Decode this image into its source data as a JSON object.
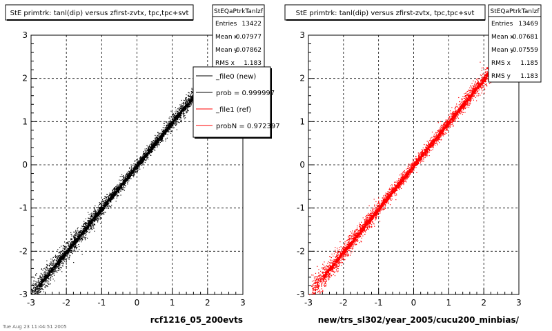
{
  "footer_text": "Tue Aug 23 11:44:51 2005",
  "chart_data": [
    {
      "type": "scatter",
      "title": "StE primtrk: tanl(dip) versus zfirst-zvtx, tpc,tpc+svt",
      "xlabel": "rcf1216_05_200evts",
      "ylabel": "",
      "xlim": [
        -3,
        3
      ],
      "ylim": [
        -3,
        3
      ],
      "xticks": [
        "-3",
        "-2",
        "-1",
        "0",
        "1",
        "2",
        "3"
      ],
      "yticks": [
        "-3",
        "-2",
        "-1",
        "0",
        "1",
        "2",
        "3"
      ],
      "grid": true,
      "color": "#000000",
      "trend": {
        "slope": 1.0,
        "intercept": 0.0,
        "x_range": [
          -3.1,
          2.0
        ]
      },
      "stats": {
        "name": "StEQaPtrkTanlzf",
        "rows": [
          {
            "label": "Entries",
            "value": "13422"
          },
          {
            "label": "Mean x",
            "value": "-0.07977"
          },
          {
            "label": "Mean y",
            "value": "-0.07862"
          },
          {
            "label": "RMS x",
            "value": "1.183"
          }
        ]
      },
      "legend": [
        {
          "label": "_file0 (new)",
          "color": "#000000"
        },
        {
          "label": "prob = 0.999997",
          "color": "#000000"
        },
        {
          "label": "_file1 (ref)",
          "color": "#ff0000"
        },
        {
          "label": "probN = 0.972397",
          "color": "#ff0000"
        }
      ]
    },
    {
      "type": "scatter",
      "title": "StE primtrk: tanl(dip) versus zfirst-zvtx, tpc,tpc+svt",
      "xlabel": "new/trs_sl302/year_2005/cucu200_minbias/",
      "ylabel": "",
      "xlim": [
        -3,
        3
      ],
      "ylim": [
        -3,
        3
      ],
      "xticks": [
        "-3",
        "-2",
        "-1",
        "0",
        "1",
        "2",
        "3"
      ],
      "yticks": [
        "-3",
        "-2",
        "-1",
        "0",
        "1",
        "2",
        "3"
      ],
      "grid": true,
      "color": "#ff0000",
      "trend": {
        "slope": 1.0,
        "intercept": 0.0,
        "x_range": [
          -2.9,
          2.5
        ]
      },
      "stats": {
        "name": "StEQaPtrkTanlzf",
        "rows": [
          {
            "label": "Entries",
            "value": "13469"
          },
          {
            "label": "Mean x",
            "value": "-0.07681"
          },
          {
            "label": "Mean y",
            "value": "-0.07559"
          },
          {
            "label": "RMS x",
            "value": "1.185"
          },
          {
            "label": "RMS y",
            "value": "1.183"
          }
        ]
      }
    }
  ]
}
